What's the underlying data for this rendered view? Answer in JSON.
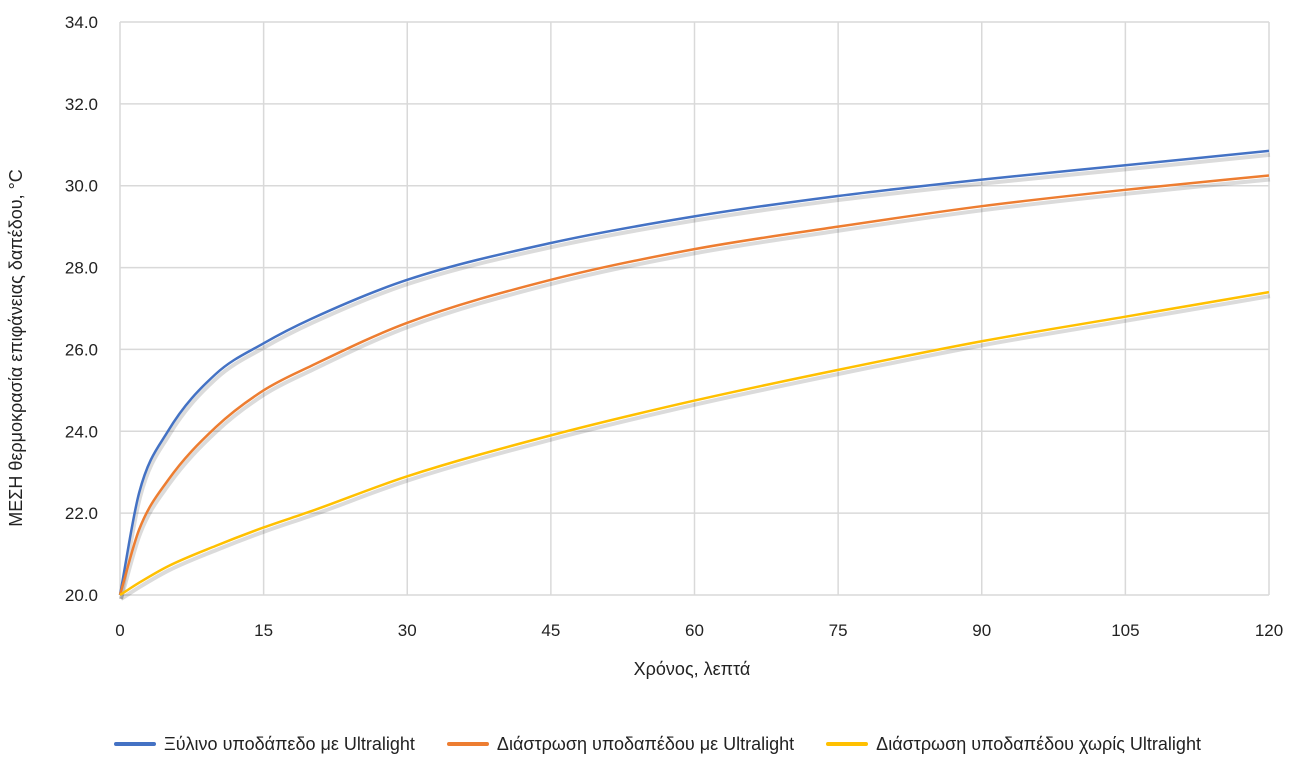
{
  "chart_data": {
    "type": "line",
    "title": "",
    "xlabel": "Χρόνος, λεπτά",
    "ylabel": "ΜΕΣΗ θερμοκρασία επιφάνειας δαπέδου, °C",
    "xlim": [
      0,
      120
    ],
    "ylim": [
      20,
      34
    ],
    "xticks": [
      "0",
      "15",
      "30",
      "45",
      "60",
      "75",
      "90",
      "105",
      "120"
    ],
    "yticks": [
      "20.0",
      "22.0",
      "24.0",
      "26.0",
      "28.0",
      "30.0",
      "32.0",
      "34.0"
    ],
    "grid": true,
    "legend_position": "bottom",
    "x": [
      0,
      2,
      5,
      10,
      15,
      20,
      30,
      45,
      60,
      75,
      90,
      105,
      120
    ],
    "series": [
      {
        "name": "Ξύλινο υποδάπεδο με Ultralight",
        "color": "#4472C4",
        "values": [
          20.0,
          22.5,
          24.0,
          25.4,
          26.15,
          26.75,
          27.7,
          28.6,
          29.25,
          29.75,
          30.15,
          30.5,
          30.85
        ]
      },
      {
        "name": "Διάστρωση υποδαπέδου με Ultralight",
        "color": "#ED7D31",
        "values": [
          20.0,
          21.6,
          22.8,
          24.1,
          25.0,
          25.6,
          26.65,
          27.7,
          28.45,
          29.0,
          29.5,
          29.9,
          30.25
        ]
      },
      {
        "name": "Διάστρωση υποδαπέδου χωρίς Ultralight",
        "color": "#FFC000",
        "values": [
          20.0,
          20.3,
          20.7,
          21.2,
          21.65,
          22.05,
          22.9,
          23.9,
          24.75,
          25.5,
          26.2,
          26.8,
          27.4
        ]
      }
    ]
  }
}
